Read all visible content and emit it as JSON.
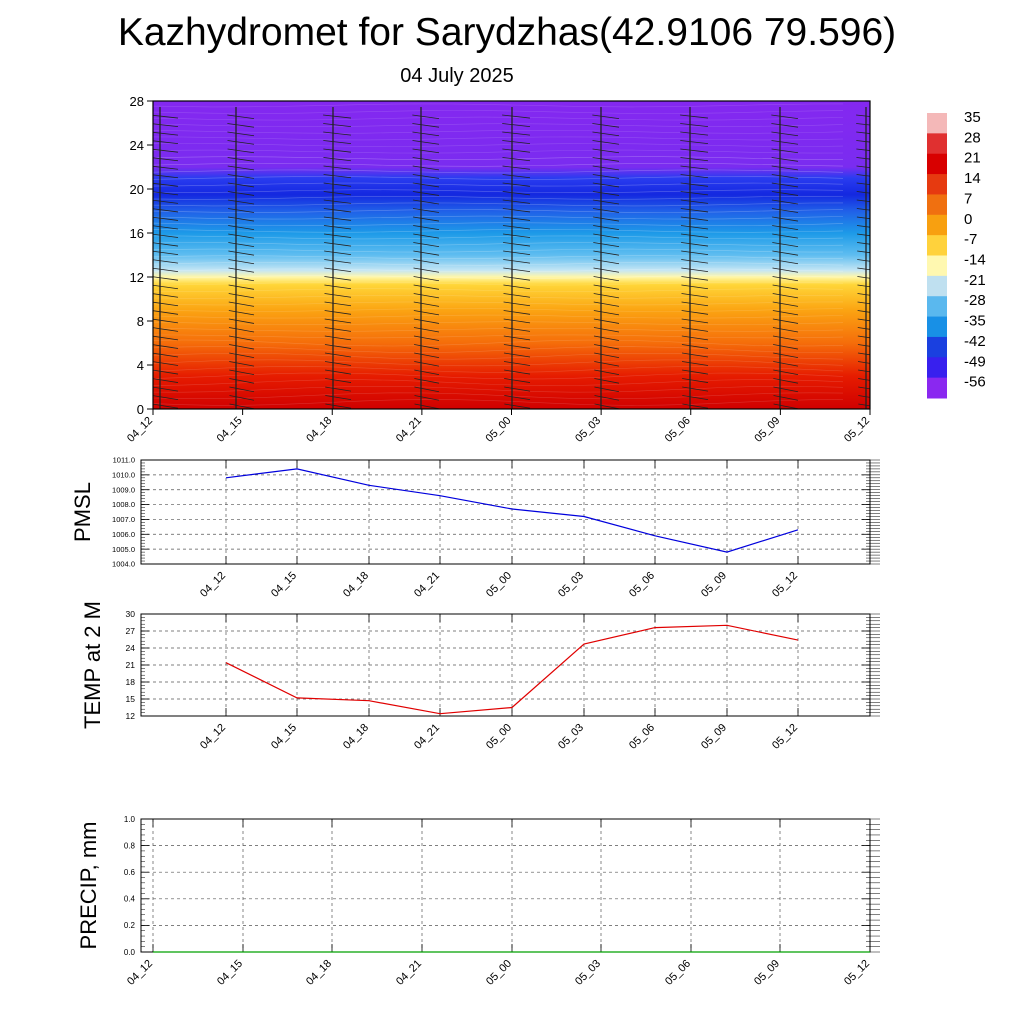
{
  "header": {
    "title": "Kazhydromet for Sarydzhas(42.9106 79.596)",
    "date": "04 July 2025"
  },
  "chart_data": [
    {
      "type": "heatmap",
      "name": "vertical-cross-section",
      "x_labels": [
        "04_12",
        "04_15",
        "04_18",
        "04_21",
        "05_00",
        "05_03",
        "05_06",
        "05_09",
        "05_12"
      ],
      "y_ticks": [
        0,
        4,
        8,
        12,
        16,
        20,
        24,
        28
      ],
      "ylim": [
        0,
        28
      ],
      "colorbar": {
        "labels": [
          35,
          28,
          21,
          14,
          7,
          0,
          -7,
          -14,
          -21,
          -28,
          -35,
          -42,
          -49,
          -56
        ],
        "colors_top_to_bottom": [
          "#f4b8b8",
          "#e03030",
          "#d80000",
          "#e63a10",
          "#f07010",
          "#f8a010",
          "#ffd23c",
          "#fff8b0",
          "#bfe0f0",
          "#5ab8ee",
          "#1890e6",
          "#1a40e0",
          "#3820ee",
          "#8a28f0"
        ]
      },
      "temperature_profile_by_height": [
        {
          "height": 0,
          "color": "#d00000"
        },
        {
          "height": 3,
          "color": "#e61c00"
        },
        {
          "height": 6,
          "color": "#f56d0a"
        },
        {
          "height": 9,
          "color": "#fba412"
        },
        {
          "height": 11.3,
          "color": "#ffd638"
        },
        {
          "height": 12,
          "color": "#fff7a8"
        },
        {
          "height": 12.6,
          "color": "#c5e6f4"
        },
        {
          "height": 14,
          "color": "#5fbdf0"
        },
        {
          "height": 16,
          "color": "#1d9ae8"
        },
        {
          "height": 18,
          "color": "#2060e8"
        },
        {
          "height": 19.5,
          "color": "#1428e0"
        },
        {
          "height": 21,
          "color": "#2a3cf0"
        },
        {
          "height": 22,
          "color": "#7a2cf0"
        },
        {
          "height": 28,
          "color": "#8428f0"
        }
      ]
    },
    {
      "type": "line",
      "name": "pmsl",
      "ylabel": "PMSL",
      "categories": [
        "04_12",
        "04_15",
        "04_18",
        "04_21",
        "05_00",
        "05_03",
        "05_06",
        "05_09",
        "05_12"
      ],
      "values": [
        1009.8,
        1010.4,
        1009.3,
        1008.6,
        1007.7,
        1007.2,
        1005.9,
        1004.8,
        1006.3
      ],
      "y_tick_labels": [
        "1011.0",
        "1010.0",
        "1009.0",
        "1008.0",
        "1007.0",
        "1006.0",
        "1005.0",
        "1004.0"
      ],
      "ylim": [
        1004,
        1011
      ],
      "color": "#0000dd",
      "grid": true
    },
    {
      "type": "line",
      "name": "temp-2m",
      "ylabel": "TEMP at 2 M",
      "categories": [
        "04_12",
        "04_15",
        "04_18",
        "04_21",
        "05_00",
        "05_03",
        "05_06",
        "05_09",
        "05_12"
      ],
      "values": [
        21.4,
        15.2,
        14.7,
        12.4,
        13.5,
        24.7,
        27.6,
        28.0,
        25.4
      ],
      "y_tick_labels": [
        "30",
        "27",
        "24",
        "21",
        "18",
        "15",
        "12"
      ],
      "ylim": [
        12,
        30
      ],
      "color": "#e00000",
      "grid": true
    },
    {
      "type": "line",
      "name": "precip",
      "ylabel": "PRECIP, mm",
      "categories": [
        "04_12",
        "04_15",
        "04_18",
        "04_21",
        "05_00",
        "05_03",
        "05_06",
        "05_09",
        "05_12"
      ],
      "values": [
        0,
        0,
        0,
        0,
        0,
        0,
        0,
        0,
        0
      ],
      "y_tick_labels": [
        "1.0",
        "0.8",
        "0.6",
        "0.4",
        "0.2",
        "0.0"
      ],
      "ylim": [
        0,
        1
      ],
      "color": "#00a000",
      "grid": true
    }
  ]
}
